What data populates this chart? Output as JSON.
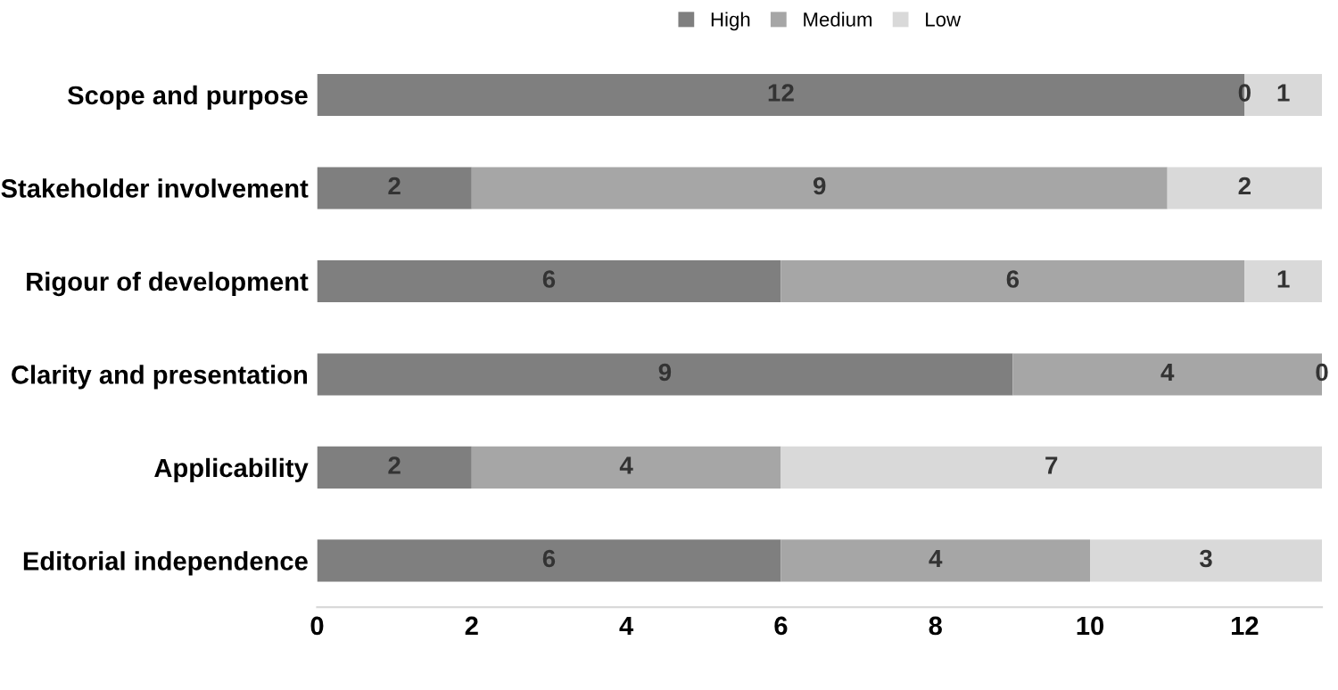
{
  "chart_data": {
    "type": "bar",
    "orientation": "horizontal",
    "stacked": true,
    "categories": [
      "Scope and purpose",
      "Stakeholder involvement",
      "Rigour of development",
      "Clarity and presentation",
      "Applicability",
      "Editorial independence"
    ],
    "series": [
      {
        "name": "High",
        "color": "#7f7f7f",
        "values": [
          12,
          2,
          6,
          9,
          2,
          6
        ]
      },
      {
        "name": "Medium",
        "color": "#a6a6a6",
        "values": [
          0,
          9,
          6,
          4,
          4,
          4
        ]
      },
      {
        "name": "Low",
        "color": "#d9d9d9",
        "values": [
          1,
          2,
          1,
          0,
          7,
          3
        ]
      }
    ],
    "xlim": [
      0,
      13
    ],
    "xticks": [
      0,
      2,
      4,
      6,
      8,
      10,
      12
    ],
    "data_labels": true,
    "legend": "top",
    "grid": false
  }
}
